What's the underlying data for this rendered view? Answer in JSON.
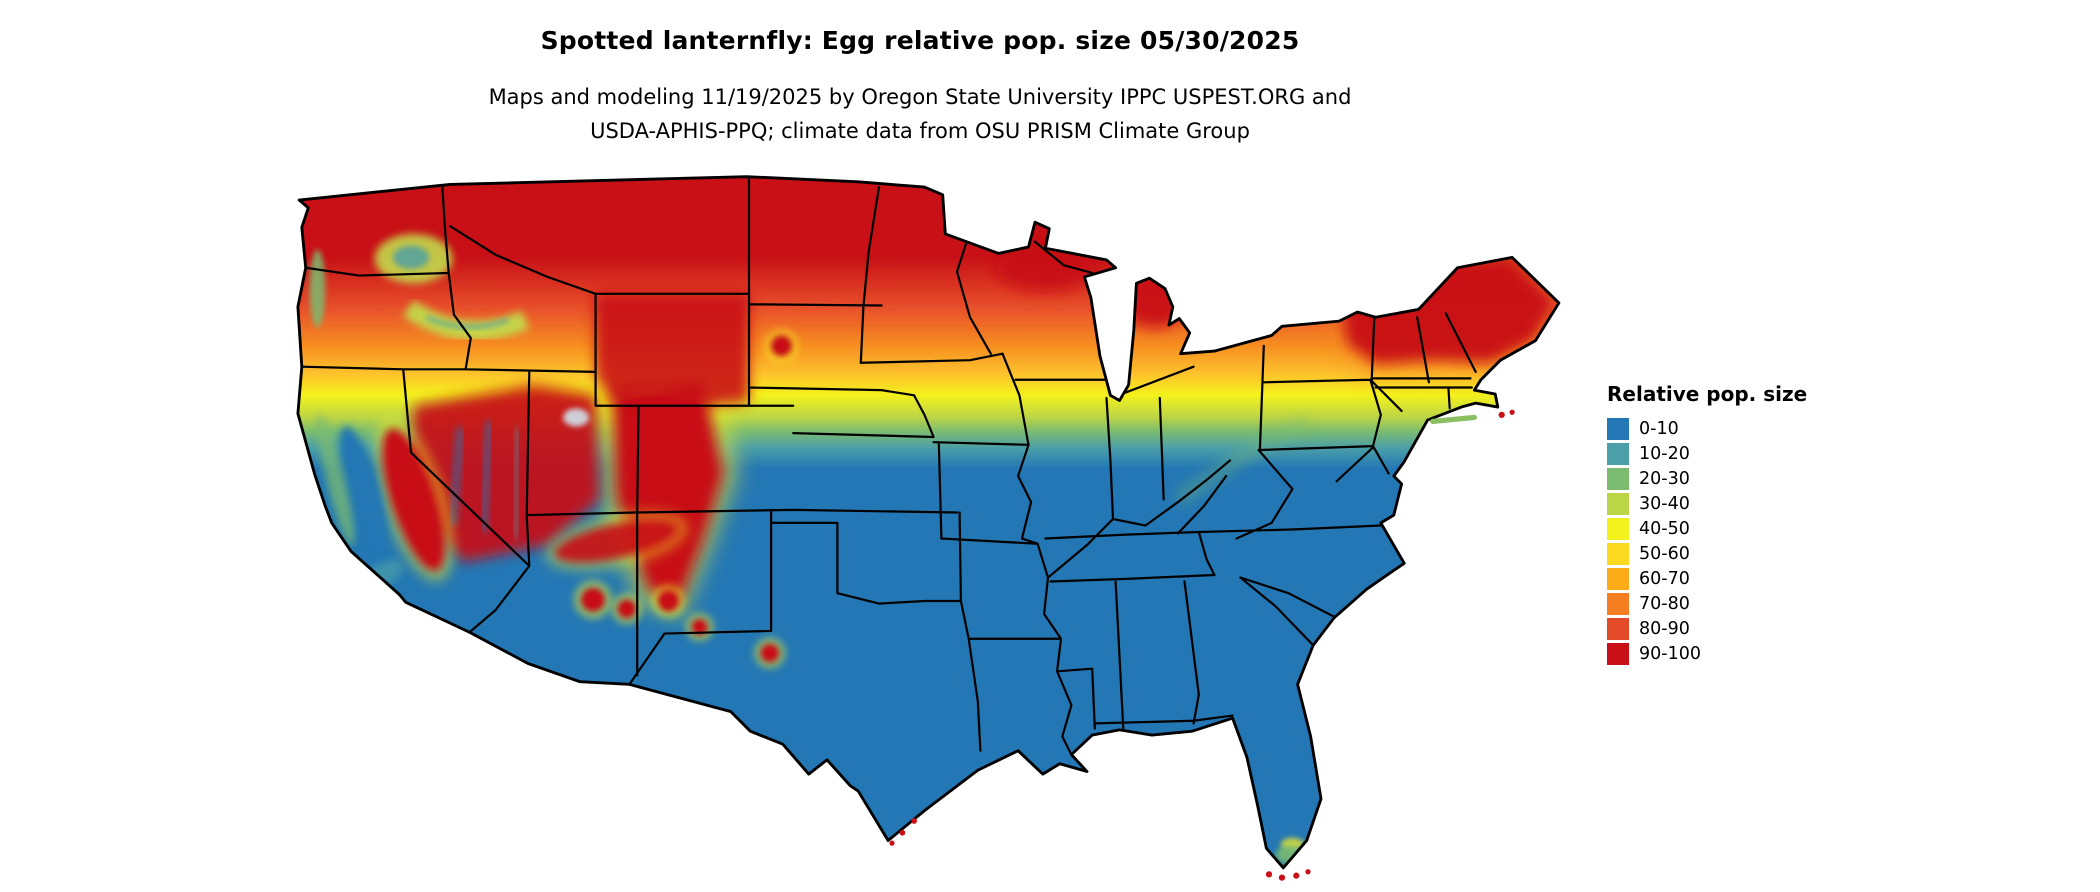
{
  "header": {
    "title": "Spotted lanternfly: Egg relative pop. size 05/30/2025",
    "subtitle_line1": "Maps and modeling 11/19/2025 by Oregon State University IPPC USPEST.ORG and",
    "subtitle_line2": "USDA-APHIS-PPQ; climate data from OSU PRISM Climate Group"
  },
  "map": {
    "region": "Contiguous United States"
  },
  "legend": {
    "title": "Relative pop. size",
    "items": [
      {
        "label": "0-10",
        "color": "#2377b4"
      },
      {
        "label": "10-20",
        "color": "#4b9fa8"
      },
      {
        "label": "20-30",
        "color": "#7bbc70"
      },
      {
        "label": "30-40",
        "color": "#bcd546"
      },
      {
        "label": "40-50",
        "color": "#f4f21c"
      },
      {
        "label": "50-60",
        "color": "#fcd921"
      },
      {
        "label": "60-70",
        "color": "#fbab18"
      },
      {
        "label": "70-80",
        "color": "#f57e20"
      },
      {
        "label": "80-90",
        "color": "#e34b28"
      },
      {
        "label": "90-100",
        "color": "#c81016"
      }
    ]
  }
}
